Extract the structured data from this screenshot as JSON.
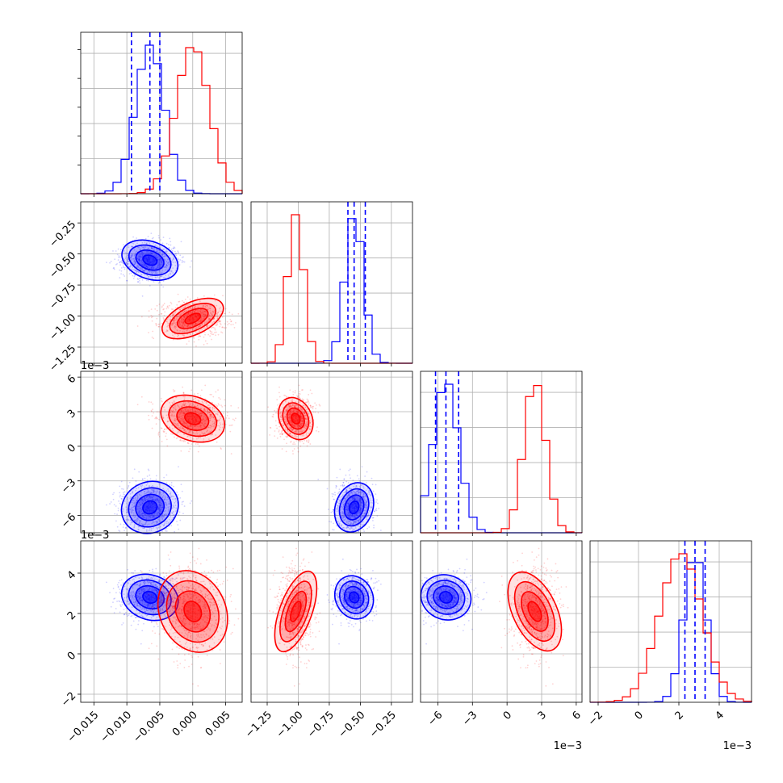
{
  "colors": {
    "series_a": "#0000ff",
    "series_b": "#ff0000",
    "grid": "#b0b0b0"
  },
  "chart_data": {
    "type": "scatter",
    "title": "",
    "grid": true,
    "params": [
      {
        "id": "p0",
        "range": [
          -0.017,
          0.0075
        ],
        "ticks": [
          -0.015,
          -0.01,
          -0.005,
          0.0,
          0.005
        ],
        "tick_labels": [
          "−0.015",
          "−0.010",
          "−0.005",
          "0.000",
          "0.005"
        ],
        "offset_label": ""
      },
      {
        "id": "p1",
        "range": [
          -1.38,
          -0.08
        ],
        "ticks": [
          -1.25,
          -1.0,
          -0.75,
          -0.5,
          -0.25
        ],
        "tick_labels": [
          "−1.25",
          "−1.00",
          "−0.75",
          "−0.50",
          "−0.25"
        ],
        "offset_label": ""
      },
      {
        "id": "p2",
        "range": [
          -7.5,
          6.5
        ],
        "ticks": [
          -6,
          -3,
          0,
          3,
          6
        ],
        "tick_labels": [
          "−6",
          "−3",
          "0",
          "3",
          "6"
        ],
        "offset_label": "1e−3"
      },
      {
        "id": "p3",
        "range": [
          -2.4,
          5.6
        ],
        "ticks": [
          -2,
          0,
          2,
          4
        ],
        "tick_labels": [
          "−2",
          "0",
          "2",
          "4"
        ],
        "offset_label": "1e−3"
      }
    ],
    "series": [
      {
        "color": "#0000ff",
        "mean": [
          -0.0065,
          -0.55,
          -5.3,
          2.8
        ],
        "std": [
          0.0022,
          0.075,
          1.1,
          0.55
        ],
        "quantiles": [
          [
            -0.0093,
            -0.0065,
            -0.005
          ],
          [
            -0.6,
            -0.55,
            -0.46
          ],
          [
            -6.2,
            -5.3,
            -4.2
          ],
          [
            2.3,
            2.8,
            3.3
          ]
        ]
      },
      {
        "color": "#ff0000",
        "mean": [
          0.0,
          -1.02,
          2.4,
          2.1
        ],
        "std": [
          0.0025,
          0.065,
          0.95,
          1.05
        ]
      }
    ]
  }
}
